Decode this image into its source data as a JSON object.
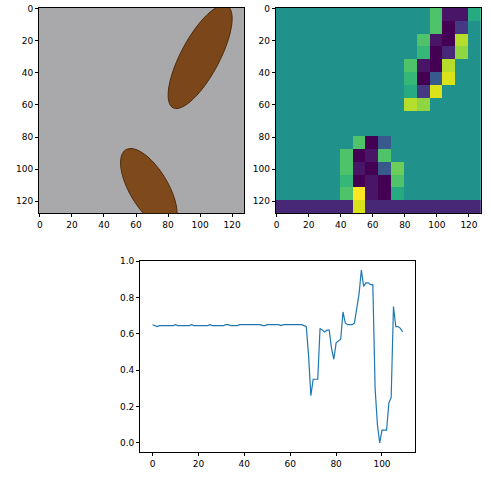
{
  "chart_data": [
    {
      "type": "image",
      "xlim": [
        -0.5,
        127.5
      ],
      "ylim": [
        127.5,
        -0.5
      ],
      "xticks": [
        0,
        20,
        40,
        60,
        80,
        100,
        120
      ],
      "yticks": [
        0,
        20,
        40,
        60,
        80,
        100,
        120
      ]
    },
    {
      "type": "heatmap",
      "xlim": [
        -0.5,
        127.5
      ],
      "ylim": [
        127.5,
        -0.5
      ],
      "xticks": [
        0,
        20,
        40,
        60,
        80,
        100,
        120
      ],
      "yticks": [
        0,
        20,
        40,
        60,
        80,
        100,
        120
      ],
      "cells": [
        [
          0.5,
          0.5,
          0.5,
          0.5,
          0.5,
          0.5,
          0.5,
          0.5,
          0.5,
          0.5,
          0.5,
          0.5,
          0.7,
          0.1,
          0.1,
          0.6
        ],
        [
          0.5,
          0.5,
          0.5,
          0.5,
          0.5,
          0.5,
          0.5,
          0.5,
          0.5,
          0.5,
          0.5,
          0.5,
          0.7,
          0.05,
          0.2,
          0.5
        ],
        [
          0.5,
          0.5,
          0.5,
          0.5,
          0.5,
          0.5,
          0.5,
          0.5,
          0.5,
          0.5,
          0.5,
          0.7,
          0.1,
          0.05,
          0.85,
          0.5
        ],
        [
          0.5,
          0.5,
          0.5,
          0.5,
          0.5,
          0.5,
          0.5,
          0.5,
          0.5,
          0.5,
          0.5,
          0.65,
          0.05,
          0.15,
          0.8,
          0.5
        ],
        [
          0.5,
          0.5,
          0.5,
          0.5,
          0.5,
          0.5,
          0.5,
          0.5,
          0.5,
          0.5,
          0.7,
          0.1,
          0.05,
          0.85,
          0.5,
          0.5
        ],
        [
          0.5,
          0.5,
          0.5,
          0.5,
          0.5,
          0.5,
          0.5,
          0.5,
          0.5,
          0.5,
          0.65,
          0.05,
          0.3,
          0.9,
          0.5,
          0.5
        ],
        [
          0.5,
          0.5,
          0.5,
          0.5,
          0.5,
          0.5,
          0.5,
          0.5,
          0.5,
          0.5,
          0.6,
          0.2,
          0.9,
          0.5,
          0.5,
          0.5
        ],
        [
          0.5,
          0.5,
          0.5,
          0.5,
          0.5,
          0.5,
          0.5,
          0.5,
          0.5,
          0.5,
          0.85,
          0.8,
          0.5,
          0.5,
          0.5,
          0.5
        ],
        [
          0.5,
          0.5,
          0.5,
          0.5,
          0.5,
          0.5,
          0.5,
          0.5,
          0.5,
          0.5,
          0.5,
          0.5,
          0.5,
          0.5,
          0.5,
          0.5
        ],
        [
          0.5,
          0.5,
          0.5,
          0.5,
          0.5,
          0.5,
          0.5,
          0.5,
          0.5,
          0.5,
          0.5,
          0.5,
          0.5,
          0.5,
          0.5,
          0.5
        ],
        [
          0.5,
          0.5,
          0.5,
          0.5,
          0.5,
          0.5,
          0.7,
          0.05,
          0.3,
          0.5,
          0.5,
          0.5,
          0.5,
          0.5,
          0.5,
          0.5
        ],
        [
          0.5,
          0.5,
          0.5,
          0.5,
          0.5,
          0.7,
          0.05,
          0.1,
          0.7,
          0.5,
          0.5,
          0.5,
          0.5,
          0.5,
          0.5,
          0.5
        ],
        [
          0.5,
          0.5,
          0.5,
          0.5,
          0.5,
          0.7,
          0.1,
          0.05,
          0.3,
          0.75,
          0.5,
          0.5,
          0.5,
          0.5,
          0.5,
          0.5
        ],
        [
          0.5,
          0.5,
          0.5,
          0.5,
          0.5,
          0.65,
          0.05,
          0.1,
          0.05,
          0.7,
          0.5,
          0.5,
          0.5,
          0.5,
          0.5,
          0.5
        ],
        [
          0.5,
          0.5,
          0.5,
          0.5,
          0.5,
          0.7,
          0.95,
          0.1,
          0.05,
          0.6,
          0.5,
          0.5,
          0.5,
          0.5,
          0.5,
          0.5
        ],
        [
          0.15,
          0.15,
          0.15,
          0.15,
          0.15,
          0.15,
          0.9,
          0.15,
          0.15,
          0.15,
          0.15,
          0.15,
          0.15,
          0.15,
          0.15,
          0.15
        ]
      ]
    },
    {
      "type": "line",
      "color": "#1f77b4",
      "xlim": [
        -5.45,
        114.45
      ],
      "ylim": [
        -0.05,
        1.0
      ],
      "xticks": [
        0,
        20,
        40,
        60,
        80,
        100
      ],
      "yticks": [
        {
          "value": 0,
          "label": "0.0"
        },
        {
          "value": 0.2,
          "label": "0.2"
        },
        {
          "value": 0.4,
          "label": "0.4"
        },
        {
          "value": 0.6,
          "label": "0.6"
        },
        {
          "value": 0.8,
          "label": "0.8"
        },
        {
          "value": 1.0,
          "label": "1.0"
        }
      ],
      "x": [
        0,
        1,
        2,
        3,
        4,
        5,
        6,
        7,
        8,
        9,
        10,
        11,
        12,
        13,
        14,
        15,
        16,
        17,
        18,
        19,
        20,
        21,
        22,
        23,
        24,
        25,
        26,
        27,
        28,
        29,
        30,
        31,
        32,
        33,
        34,
        35,
        36,
        37,
        38,
        39,
        40,
        41,
        42,
        43,
        44,
        45,
        46,
        47,
        48,
        49,
        50,
        51,
        52,
        53,
        54,
        55,
        56,
        57,
        58,
        59,
        60,
        61,
        62,
        63,
        64,
        65,
        66,
        67,
        68,
        69,
        70,
        71,
        72,
        73,
        74,
        75,
        76,
        77,
        78,
        79,
        80,
        81,
        82,
        83,
        84,
        85,
        86,
        87,
        88,
        89,
        90,
        91,
        92,
        93,
        94,
        95,
        96,
        97,
        98,
        99,
        100,
        101,
        102,
        103,
        104,
        105,
        106,
        107,
        108,
        109
      ],
      "values": [
        0.65,
        0.645,
        0.64,
        0.645,
        0.645,
        0.645,
        0.645,
        0.645,
        0.645,
        0.645,
        0.65,
        0.645,
        0.645,
        0.645,
        0.645,
        0.645,
        0.645,
        0.65,
        0.645,
        0.645,
        0.645,
        0.645,
        0.645,
        0.645,
        0.645,
        0.65,
        0.645,
        0.645,
        0.645,
        0.645,
        0.645,
        0.645,
        0.65,
        0.65,
        0.645,
        0.645,
        0.645,
        0.645,
        0.65,
        0.65,
        0.65,
        0.65,
        0.65,
        0.65,
        0.65,
        0.65,
        0.65,
        0.65,
        0.645,
        0.645,
        0.65,
        0.65,
        0.65,
        0.65,
        0.65,
        0.65,
        0.645,
        0.65,
        0.65,
        0.65,
        0.65,
        0.65,
        0.65,
        0.65,
        0.65,
        0.65,
        0.645,
        0.64,
        0.48,
        0.26,
        0.35,
        0.35,
        0.35,
        0.63,
        0.62,
        0.61,
        0.62,
        0.62,
        0.52,
        0.46,
        0.55,
        0.56,
        0.57,
        0.72,
        0.66,
        0.65,
        0.65,
        0.65,
        0.66,
        0.75,
        0.82,
        0.95,
        0.86,
        0.88,
        0.88,
        0.87,
        0.87,
        0.3,
        0.1,
        0.0,
        0.07,
        0.07,
        0.07,
        0.22,
        0.25,
        0.75,
        0.64,
        0.64,
        0.63,
        0.61
      ]
    }
  ]
}
